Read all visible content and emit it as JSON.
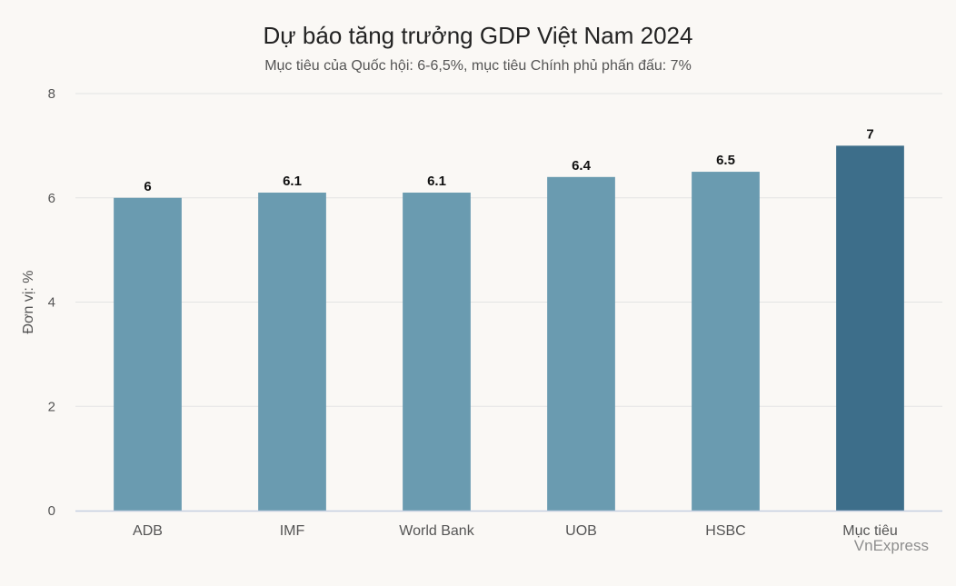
{
  "chart_data": {
    "type": "bar",
    "title": "Dự báo tăng trưởng GDP Việt Nam 2024",
    "subtitle": "Mục tiêu của Quốc hội: 6-6,5%, mục tiêu Chính phủ phấn đấu: 7%",
    "ylabel": "Đơn vị: %",
    "xlabel": "",
    "categories": [
      "ADB",
      "IMF",
      "World Bank",
      "UOB",
      "HSBC",
      "Mục tiêu"
    ],
    "values": [
      6,
      6.1,
      6.1,
      6.4,
      6.5,
      7
    ],
    "value_labels": [
      "6",
      "6.1",
      "6.1",
      "6.4",
      "6.5",
      "7"
    ],
    "ylim": [
      0,
      8
    ],
    "yticks": [
      "0",
      "2",
      "4",
      "6",
      "8"
    ],
    "grid": true,
    "colors": {
      "bar": "#6a9bb0",
      "highlight": "#3d6e8a",
      "grid": "#e3e3e3",
      "axis": "#c5cfe0",
      "text": "#555555",
      "label": "#111111"
    },
    "highlight_index": 5
  },
  "watermark": "VnExpress"
}
